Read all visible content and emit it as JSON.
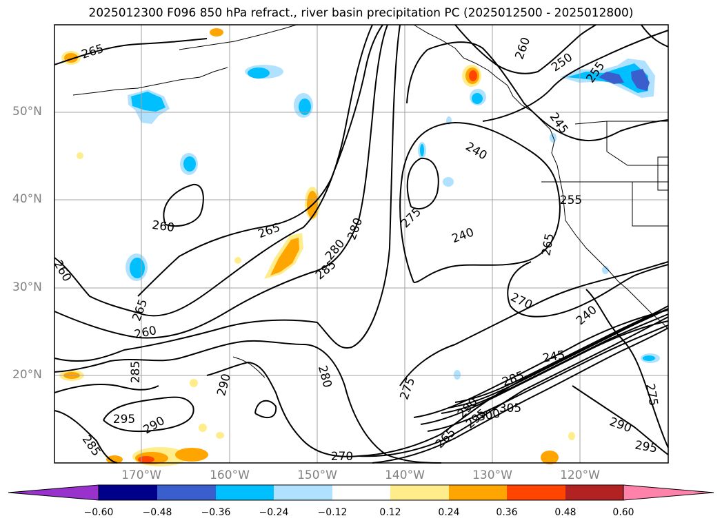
{
  "title": "2025012300 F096 850 hPa refract., river basin precipitation PC (2025012500 - 2025012800)",
  "lat_labels": [
    "50°N",
    "40°N",
    "30°N",
    "20°N"
  ],
  "lon_labels": [
    "170°W",
    "160°W",
    "150°W",
    "140°W",
    "130°W",
    "120°W"
  ],
  "contour_labels": [
    "265",
    "260",
    "260",
    "265",
    "265",
    "260",
    "285",
    "295",
    "290",
    "285",
    "290",
    "285",
    "280",
    "280",
    "270",
    "280",
    "275",
    "275",
    "240",
    "240",
    "245",
    "250",
    "255",
    "260",
    "255",
    "265",
    "270",
    "240",
    "245",
    "285",
    "290",
    "295",
    "300",
    "305",
    "295",
    "290",
    "275",
    "265"
  ],
  "colorbar": {
    "ticks": [
      "−0.60",
      "−0.48",
      "−0.36",
      "−0.24",
      "−0.12",
      "0.12",
      "0.24",
      "0.36",
      "0.48",
      "0.60"
    ],
    "colors": [
      "#9932cc",
      "#00008b",
      "#3a5fcd",
      "#00bfff",
      "#b0e2ff",
      "#ffffff",
      "#ffec8b",
      "#ffa500",
      "#ff4500",
      "#b22222",
      "#ff82ab"
    ]
  },
  "colors": {
    "grid": "#a0a0a0",
    "contour": "#000000",
    "tick_label": "#808080"
  }
}
